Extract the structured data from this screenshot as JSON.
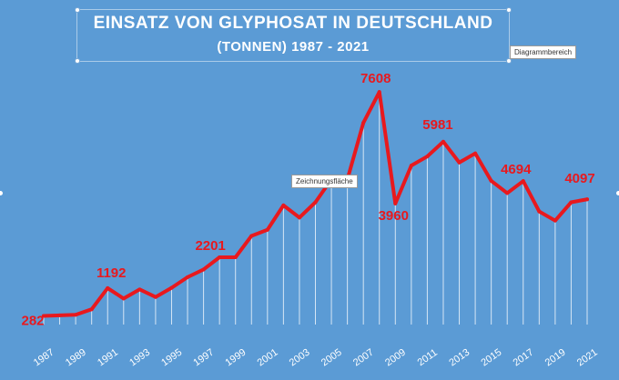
{
  "title": {
    "line1": "EINSATZ VON GLYPHOSAT IN DEUTSCHLAND",
    "line2": "(TONNEN) 1987 - 2021"
  },
  "tooltips": {
    "chart_area": "Diagrammbereich",
    "plot_area": "Zeichnungsfläche"
  },
  "colors": {
    "background": "#5b9bd5",
    "line": "#e8191e",
    "drop_lines": "#ffffff",
    "labels": "#e8191e",
    "text": "#ffffff"
  },
  "chart_data": {
    "type": "line",
    "title": "EINSATZ VON GLYPHOSAT IN DEUTSCHLAND (TONNEN) 1987 - 2021",
    "xlabel": "",
    "ylabel": "",
    "x": [
      1987,
      1988,
      1989,
      1990,
      1991,
      1992,
      1993,
      1994,
      1995,
      1996,
      1997,
      1998,
      1999,
      2000,
      2001,
      2002,
      2003,
      2004,
      2005,
      2006,
      2007,
      2008,
      2009,
      2010,
      2011,
      2012,
      2013,
      2014,
      2015,
      2016,
      2017,
      2018,
      2019,
      2020,
      2021
    ],
    "tick_labels": [
      "1987",
      "1989",
      "1991",
      "1993",
      "1995",
      "1997",
      "1999",
      "2001",
      "2003",
      "2005",
      "2007",
      "2009",
      "2011",
      "2013",
      "2015",
      "2017",
      "2019",
      "2021"
    ],
    "series": [
      {
        "values": [
          282,
          300,
          320,
          500,
          1192,
          850,
          1150,
          900,
          1200,
          1550,
          1800,
          2201,
          2201,
          2900,
          3100,
          3900,
          3500,
          4000,
          4750,
          4750,
          6600,
          7608,
          3960,
          5200,
          5500,
          5981,
          5300,
          5600,
          4700,
          4300,
          4694,
          3700,
          3400,
          4000,
          4097
        ]
      }
    ],
    "data_labels": [
      {
        "x": 1987,
        "value": "282"
      },
      {
        "x": 1991,
        "value": "1192"
      },
      {
        "x": 1998,
        "value": "2201"
      },
      {
        "x": 2008,
        "value": "7608"
      },
      {
        "x": 2009,
        "value": "3960"
      },
      {
        "x": 2012,
        "value": "5981"
      },
      {
        "x": 2017,
        "value": "4694"
      },
      {
        "x": 2021,
        "value": "4097"
      }
    ],
    "ylim": [
      0,
      8000
    ],
    "grid": false,
    "legend": "none",
    "drop_lines": true
  }
}
